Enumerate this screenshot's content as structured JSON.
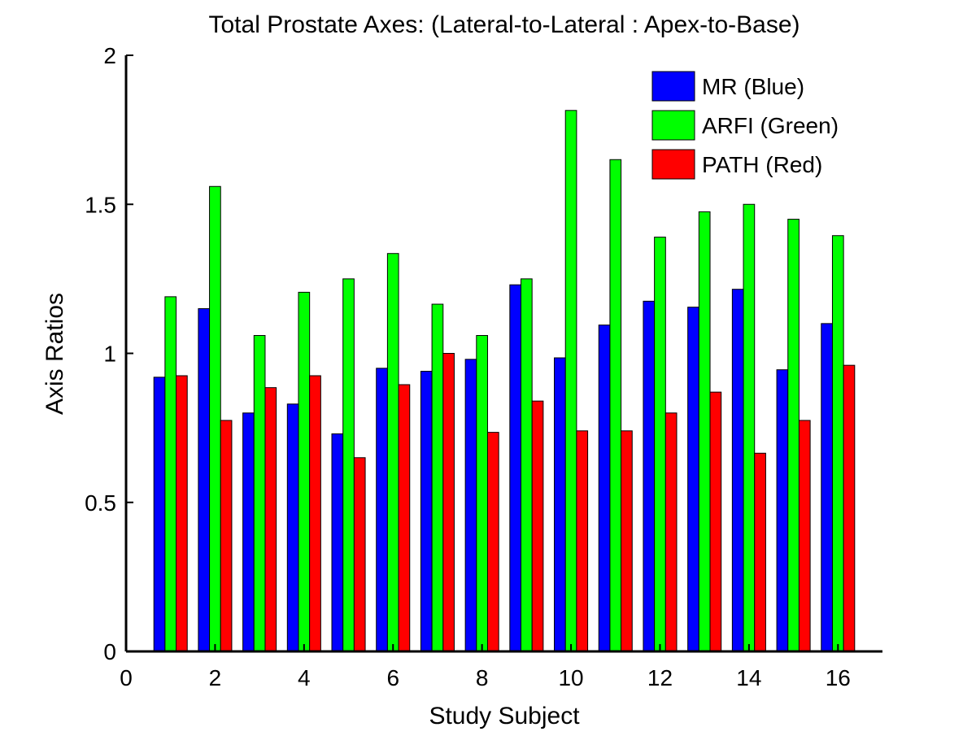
{
  "chart_data": {
    "type": "bar",
    "title": "Total Prostate Axes: (Lateral-to-Lateral : Apex-to-Base)",
    "xlabel": "Study Subject",
    "ylabel": "Axis Ratios",
    "xlim": [
      0,
      17
    ],
    "ylim": [
      0,
      2
    ],
    "xticks": [
      0,
      2,
      4,
      6,
      8,
      10,
      12,
      14,
      16
    ],
    "yticks": [
      0,
      0.5,
      1,
      1.5,
      2
    ],
    "ytick_labels": [
      "0",
      "0.5",
      "1",
      "1.5",
      "2"
    ],
    "grid": false,
    "legend_position": "top-right",
    "x": [
      1,
      2,
      3,
      4,
      5,
      6,
      7,
      8,
      9,
      10,
      11,
      12,
      13,
      14,
      15,
      16
    ],
    "series": [
      {
        "name": "MR (Blue)",
        "color": "#0000ff",
        "values": [
          0.92,
          1.15,
          0.8,
          0.83,
          0.73,
          0.95,
          0.94,
          0.98,
          1.23,
          0.985,
          1.095,
          1.175,
          1.155,
          1.215,
          0.945,
          1.1
        ]
      },
      {
        "name": "ARFI (Green)",
        "color": "#00ff00",
        "values": [
          1.19,
          1.56,
          1.06,
          1.205,
          1.25,
          1.335,
          1.165,
          1.06,
          1.25,
          1.815,
          1.65,
          1.39,
          1.475,
          1.5,
          1.45,
          1.395
        ]
      },
      {
        "name": "PATH (Red)",
        "color": "#ff0000",
        "values": [
          0.925,
          0.775,
          0.885,
          0.925,
          0.65,
          0.895,
          1.0,
          0.735,
          0.84,
          0.74,
          0.74,
          0.8,
          0.87,
          0.665,
          0.775,
          0.96
        ]
      }
    ]
  }
}
